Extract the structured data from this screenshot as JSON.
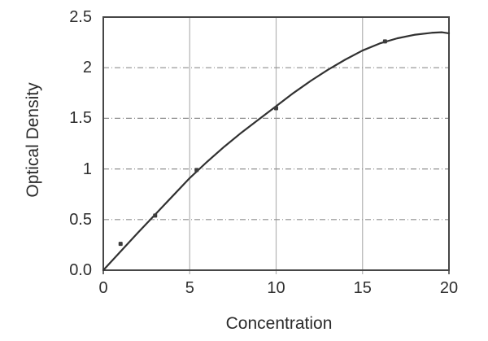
{
  "chart_data": {
    "type": "line",
    "title": "",
    "xlabel": "Concentration",
    "ylabel": "Optical Density",
    "xlim": [
      0,
      20
    ],
    "ylim": [
      0,
      2.5
    ],
    "xticks": {
      "values": [
        0,
        5,
        10,
        15,
        20
      ],
      "labels": [
        "0",
        "5",
        "10",
        "15",
        "20"
      ]
    },
    "yticks": {
      "values": [
        0,
        0.5,
        1,
        1.5,
        2,
        2.5
      ],
      "labels": [
        "0.0",
        "0.5",
        "1",
        "1.5",
        "2",
        "2.5"
      ]
    },
    "grid": {
      "vertical_style": "solid",
      "horizontal_style": "dashed",
      "vertical_at": [
        5,
        10,
        15
      ],
      "horizontal_at": [
        0.5,
        1,
        1.5,
        2
      ]
    },
    "legend": "none",
    "series": [
      {
        "name": "fit-curve",
        "type": "line",
        "points": [
          [
            0,
            0
          ],
          [
            1,
            0.185
          ],
          [
            2,
            0.37
          ],
          [
            3,
            0.55
          ],
          [
            4,
            0.73
          ],
          [
            5,
            0.91
          ],
          [
            6,
            1.07
          ],
          [
            7,
            1.22
          ],
          [
            8,
            1.36
          ],
          [
            9,
            1.49
          ],
          [
            10,
            1.62
          ],
          [
            11,
            1.75
          ],
          [
            12,
            1.87
          ],
          [
            13,
            1.98
          ],
          [
            14,
            2.08
          ],
          [
            15,
            2.17
          ],
          [
            16,
            2.24
          ],
          [
            17,
            2.29
          ],
          [
            18,
            2.325
          ],
          [
            19,
            2.345
          ],
          [
            19.6,
            2.35
          ],
          [
            20,
            2.34
          ]
        ]
      },
      {
        "name": "standards",
        "type": "scatter",
        "points": [
          [
            1,
            0.26
          ],
          [
            3,
            0.54
          ],
          [
            5.4,
            0.99
          ],
          [
            10,
            1.6
          ],
          [
            16.3,
            2.26
          ]
        ]
      }
    ],
    "colors": {
      "background": "#ffffff",
      "border": "#464646",
      "grid_vertical": "#b3b3b3",
      "grid_horizontal": "#8f8f8f",
      "curve": "#313131",
      "marker": "#3d3d3d",
      "text": "#2e2e2e"
    }
  }
}
